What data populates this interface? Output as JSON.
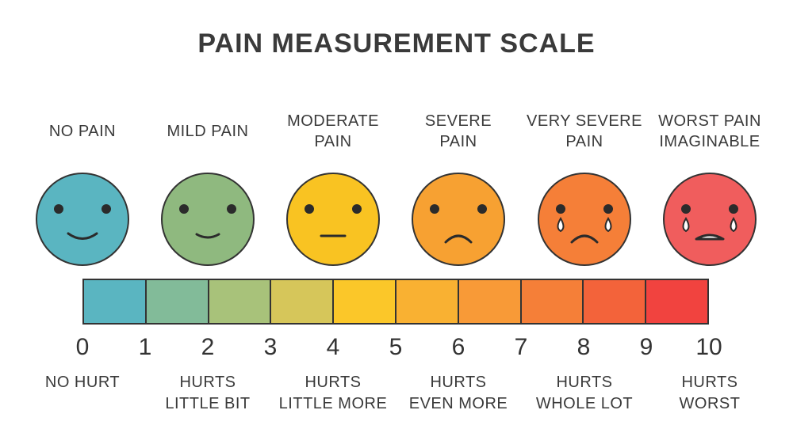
{
  "title": "PAIN MEASUREMENT SCALE",
  "faces": [
    {
      "label": "NO PAIN",
      "color": "#5ab5c1",
      "mood": "big-smile",
      "tears": false
    },
    {
      "label": "MILD PAIN",
      "color": "#8fb97f",
      "mood": "small-smile",
      "tears": false
    },
    {
      "label": "MODERATE\nPAIN",
      "color": "#f9c322",
      "mood": "neutral",
      "tears": false
    },
    {
      "label": "SEVERE\nPAIN",
      "color": "#f7a132",
      "mood": "frown",
      "tears": false
    },
    {
      "label": "VERY SEVERE\nPAIN",
      "color": "#f57f38",
      "mood": "frown",
      "tears": true
    },
    {
      "label": "WORST PAIN\nIMAGINABLE",
      "color": "#f05d5d",
      "mood": "crying",
      "tears": true
    }
  ],
  "scale_colors": [
    "#5ab5c1",
    "#82bb99",
    "#a8c27a",
    "#d6c65a",
    "#fbc729",
    "#f9b132",
    "#f89a37",
    "#f57f38",
    "#f3633a",
    "#f1433f"
  ],
  "ticks": [
    "0",
    "1",
    "2",
    "3",
    "4",
    "5",
    "6",
    "7",
    "8",
    "9",
    "10"
  ],
  "descriptions": [
    "NO HURT",
    "HURTS\nLITTLE BIT",
    "HURTS\nLITTLE MORE",
    "HURTS\nEVEN MORE",
    "HURTS\nWHOLE LOT",
    "HURTS\nWORST"
  ]
}
